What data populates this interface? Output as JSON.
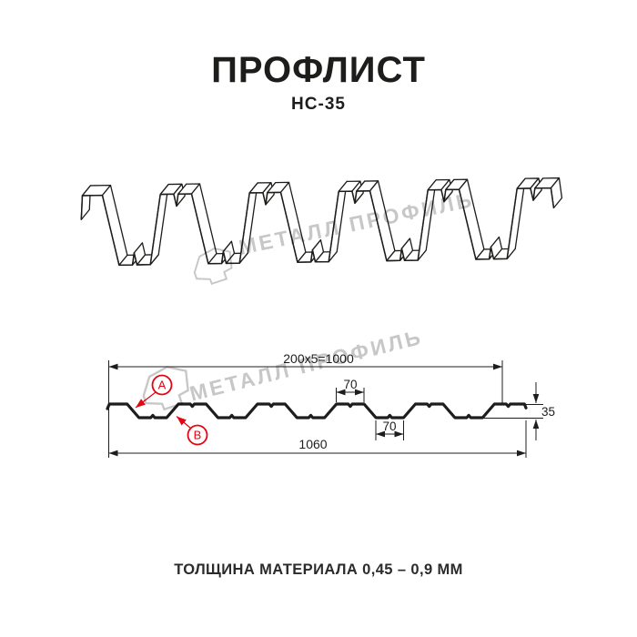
{
  "title": "ПРОФЛИСТ",
  "subtitle": "НС-35",
  "footer": "ТОЛЩИНА МАТЕРИАЛА 0,45 – 0,9 ММ",
  "watermark": {
    "text": "МЕТАЛЛ ПРОФИЛЬ"
  },
  "section": {
    "dim_pitch": "200x5=1000",
    "dim_crest_width": "70",
    "dim_valley_width": "70",
    "dim_total_width": "1060",
    "dim_height": "35",
    "label_a": "А",
    "label_b": "В"
  },
  "colors": {
    "line": "#1d1d1b",
    "accent_red": "#e30613",
    "watermark": "#c7c7c7"
  }
}
